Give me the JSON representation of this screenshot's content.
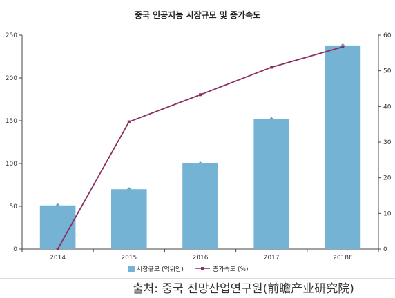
{
  "chart_data": {
    "type": "bar",
    "title": "중국 인공지능 시장규모 및 증가속도",
    "categories": [
      "2014",
      "2015",
      "2016",
      "2017",
      "2018E"
    ],
    "series": [
      {
        "name": "시장규모 (억위안)",
        "type": "bar",
        "axis": "left",
        "color": "#74b3d3",
        "values": [
          51,
          70,
          100,
          152,
          238
        ]
      },
      {
        "name": "증가속도 (%)",
        "type": "line",
        "axis": "right",
        "color": "#8b2e62",
        "values": [
          0,
          35.7,
          43.3,
          51.0,
          56.7
        ]
      }
    ],
    "ylim_left": [
      0,
      250
    ],
    "ylim_right": [
      0,
      60
    ],
    "left_ticks": [
      "0",
      "50",
      "100",
      "150",
      "200",
      "250"
    ],
    "right_ticks": [
      "0",
      "10",
      "20",
      "30",
      "40",
      "50",
      "60"
    ],
    "legend_position": "bottom",
    "grid": false
  },
  "source_text": "출처: 중국 전망산업연구원(前瞻产业研究院)"
}
